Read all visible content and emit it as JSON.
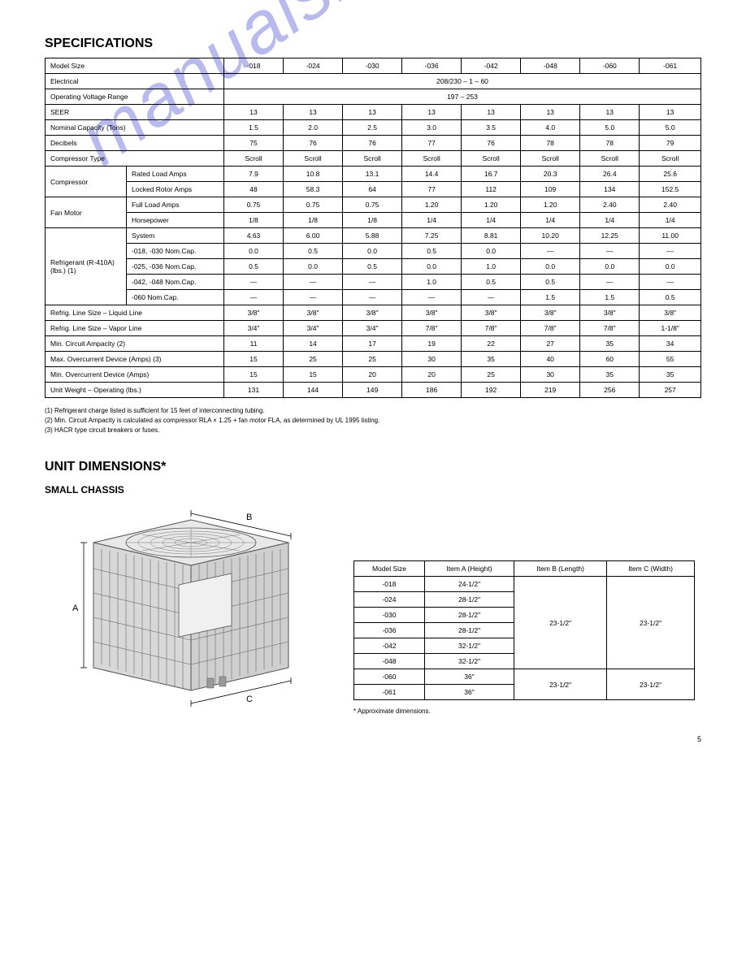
{
  "page_number": "5",
  "watermark_text": "manualshive.com",
  "specs": {
    "title": "SPECIFICATIONS",
    "models": [
      "-018",
      "-024",
      "-030",
      "-036",
      "-042",
      "-048",
      "-060",
      "-061"
    ],
    "rows": [
      {
        "label": "Model Size",
        "cells": [
          "-018",
          "-024",
          "-030",
          "-036",
          "-042",
          "-048",
          "-060",
          "-061"
        ]
      },
      {
        "label": "Electrical",
        "span": "208/230 – 1 – 60"
      },
      {
        "label": "Operating Voltage Range",
        "span": "197 – 253"
      },
      {
        "label": "SEER",
        "cells": [
          "13",
          "13",
          "13",
          "13",
          "13",
          "13",
          "13",
          "13"
        ]
      },
      {
        "label": "Nominal Capacity (Tons)",
        "cells": [
          "1.5",
          "2.0",
          "2.5",
          "3.0",
          "3.5",
          "4.0",
          "5.0",
          "5.0"
        ]
      },
      {
        "label": "Decibels",
        "cells": [
          "75",
          "76",
          "76",
          "77",
          "76",
          "78",
          "78",
          "79"
        ]
      },
      {
        "label": "Compressor Type",
        "cells": [
          "Scroll",
          "Scroll",
          "Scroll",
          "Scroll",
          "Scroll",
          "Scroll",
          "Scroll",
          "Scroll"
        ]
      },
      {
        "group": "Compressor",
        "label": "Rated Load Amps",
        "cells": [
          "7.9",
          "10.8",
          "13.1",
          "14.4",
          "16.7",
          "20.3",
          "26.4",
          "25.6"
        ]
      },
      {
        "group": "Compressor",
        "label": "Locked Rotor Amps",
        "cells": [
          "48",
          "58.3",
          "64",
          "77",
          "112",
          "109",
          "134",
          "152.5"
        ]
      },
      {
        "group": "Fan Motor",
        "label": "Full Load Amps",
        "cells": [
          "0.75",
          "0.75",
          "0.75",
          "1.20",
          "1.20",
          "1.20",
          "2.40",
          "2.40"
        ]
      },
      {
        "group": "Fan Motor",
        "label": "Horsepower",
        "cells": [
          "1/8",
          "1/8",
          "1/8",
          "1/4",
          "1/4",
          "1/4",
          "1/4",
          "1/4"
        ]
      },
      {
        "group": "Refrigerant (R-410A) (lbs.) (1)",
        "label": "System",
        "cells": [
          "4.63",
          "6.00",
          "5.88",
          "7.25",
          "8.81",
          "10.20",
          "12.25",
          "11.00"
        ]
      },
      {
        "group": "Refrigerant (R-410A) (lbs.) (1)",
        "label": "-018, -030 Nom.Cap.",
        "cells": [
          "0.0",
          "0.5",
          "0.0",
          "0.5",
          "0.0",
          "—",
          "—",
          "—"
        ]
      },
      {
        "group": "Refrigerant (R-410A) (lbs.) (1)",
        "label": "-025, -036 Nom.Cap.",
        "cells": [
          "0.5",
          "0.0",
          "0.5",
          "0.0",
          "1.0",
          "0.0",
          "0.0",
          "0.0"
        ]
      },
      {
        "group": "Refrigerant (R-410A) (lbs.) (1)",
        "label": "-042, -048 Nom.Cap.",
        "cells": [
          "—",
          "—",
          "—",
          "1.0",
          "0.5",
          "0.5",
          "—",
          "—"
        ]
      },
      {
        "group": "Refrigerant (R-410A) (lbs.) (1)",
        "label": "-060 Nom.Cap.",
        "cells": [
          "—",
          "—",
          "—",
          "—",
          "—",
          "1.5",
          "1.5",
          "0.5"
        ]
      },
      {
        "label": "Refrig. Line Size – Liquid Line",
        "cells": [
          "3/8\"",
          "3/8\"",
          "3/8\"",
          "3/8\"",
          "3/8\"",
          "3/8\"",
          "3/8\"",
          "3/8\""
        ]
      },
      {
        "label": "Refrig. Line Size – Vapor Line",
        "cells": [
          "3/4\"",
          "3/4\"",
          "3/4\"",
          "7/8\"",
          "7/8\"",
          "7/8\"",
          "7/8\"",
          "1-1/8\""
        ]
      },
      {
        "label": "Min. Circuit Ampacity (2)",
        "cells": [
          "11",
          "14",
          "17",
          "19",
          "22",
          "27",
          "35",
          "34"
        ]
      },
      {
        "label": "Max. Overcurrent Device (Amps) (3)",
        "cells": [
          "15",
          "25",
          "25",
          "30",
          "35",
          "40",
          "60",
          "55"
        ]
      },
      {
        "label": "Min. Overcurrent Device (Amps)",
        "cells": [
          "15",
          "15",
          "20",
          "20",
          "25",
          "30",
          "35",
          "35"
        ]
      },
      {
        "label": "Unit Weight – Operating (lbs.)",
        "cells": [
          "131",
          "144",
          "149",
          "186",
          "192",
          "219",
          "256",
          "257"
        ]
      }
    ],
    "footnotes": [
      "(1) Refrigerant charge listed is sufficient for 15 feet of interconnecting tubing.",
      "(2) Min. Circuit Ampacity is calculated as compressor RLA × 1.25 + fan motor FLA, as determined by UL 1995 listing.",
      "(3) HACR type circuit breakers or fuses."
    ]
  },
  "dimensions": {
    "title": "UNIT DIMENSIONS*",
    "subheading": "SMALL CHASSIS",
    "headers": {
      "model": "Model Size",
      "item_a": "Item A (Height)",
      "item_b": "Item B (Length)",
      "item_c": "Item C (Width)"
    },
    "width_val": "23-1/2\"",
    "length_val": "23-1/2\"",
    "rows": [
      {
        "model": "-018",
        "height": "24-1/2\""
      },
      {
        "model": "-024",
        "height": "28-1/2\""
      },
      {
        "model": "-030",
        "height": "28-1/2\""
      },
      {
        "model": "-036",
        "height": "28-1/2\""
      },
      {
        "model": "-042",
        "height": "32-1/2\""
      },
      {
        "model": "-048",
        "height": "32-1/2\""
      },
      {
        "model": "-060",
        "height": "36\""
      },
      {
        "model": "-061",
        "height": "36\""
      }
    ],
    "footnote": "* Approximate dimensions.",
    "labels": {
      "a": "A",
      "b": "B",
      "c": "C"
    }
  }
}
